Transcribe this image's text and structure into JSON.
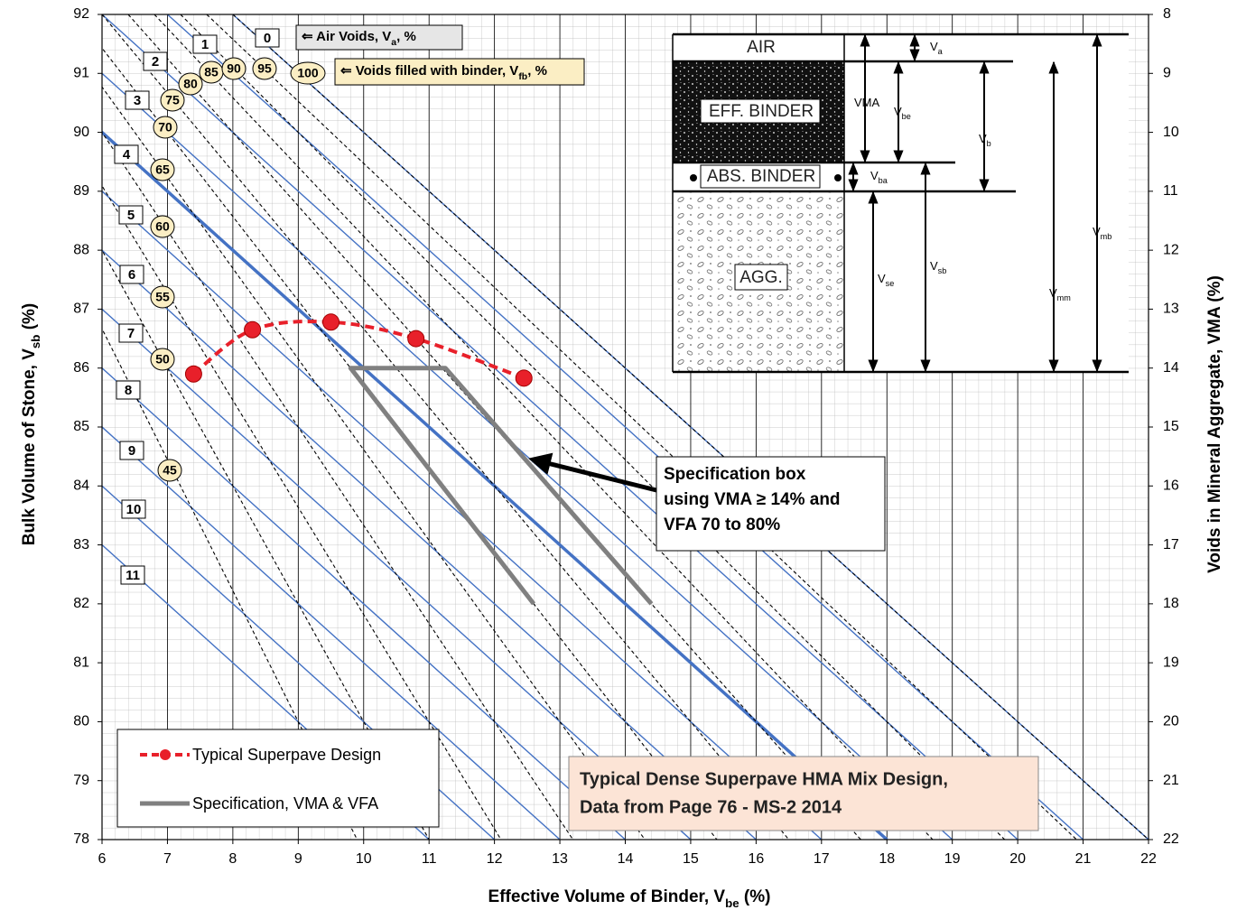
{
  "chart_data": {
    "type": "line",
    "x_label": [
      "Effective Volume of Binder, V",
      "be",
      " (%)"
    ],
    "y_label": [
      "Bulk Volume of Stone, V",
      "sb",
      " (%)"
    ],
    "y2_label": "Voids in Mineral Aggregate, VMA (%)",
    "xlim": [
      6,
      22
    ],
    "xticks": [
      6,
      7,
      8,
      9,
      10,
      11,
      12,
      13,
      14,
      15,
      16,
      17,
      18,
      19,
      20,
      21,
      22
    ],
    "ylim": [
      78,
      92
    ],
    "yticks": [
      78,
      79,
      80,
      81,
      82,
      83,
      84,
      85,
      86,
      87,
      88,
      89,
      90,
      91,
      92
    ],
    "y2lim": [
      22,
      8
    ],
    "y2ticks": [
      8,
      9,
      10,
      11,
      12,
      13,
      14,
      15,
      16,
      17,
      18,
      19,
      20,
      21,
      22
    ],
    "grid": true,
    "series": [
      {
        "name": "Typical Superpave Design",
        "color": "#e8202a",
        "x": [
          7.4,
          8.3,
          9.5,
          10.8,
          12.45
        ],
        "values": [
          85.9,
          86.65,
          86.78,
          86.5,
          85.83
        ]
      },
      {
        "name": "Specification, VMA & VFA",
        "color": "#808080",
        "x": [
          12.6,
          9.8,
          11.25,
          14.4
        ],
        "values": [
          82,
          86,
          86,
          82
        ]
      }
    ],
    "air_voids": {
      "label": [
        "⇐ Air Voids, V",
        "a",
        ", %"
      ],
      "values": [
        0,
        1,
        2,
        3,
        4,
        5,
        6,
        7,
        8,
        9,
        10,
        11
      ],
      "color": "#4472c4",
      "highlight": 4
    },
    "vfa": {
      "label": [
        "⇐ Voids filled with binder, V",
        "fb",
        ", %"
      ],
      "values": [
        45,
        50,
        55,
        60,
        65,
        70,
        75,
        80,
        85,
        90,
        95,
        100
      ],
      "color": "#000000"
    },
    "annotation": [
      "Specification box",
      "using VMA ≥ 14%  and",
      "VFA 70 to 80%"
    ],
    "note": [
      "Typical Dense Superpave HMA Mix Design,",
      "Data from Page 76 - MS-2 2014"
    ],
    "inset": {
      "regions": [
        "AIR",
        "EFF. BINDER",
        "ABS. BINDER",
        "AGG."
      ],
      "dimensions": [
        [
          "VMA"
        ],
        [
          "V",
          "a"
        ],
        [
          "V",
          "be"
        ],
        [
          "V",
          "b"
        ],
        [
          "V",
          "ba"
        ],
        [
          "V",
          "se"
        ],
        [
          "V",
          "sb"
        ],
        [
          "V",
          "mm"
        ],
        [
          "V",
          "mb"
        ]
      ]
    }
  }
}
